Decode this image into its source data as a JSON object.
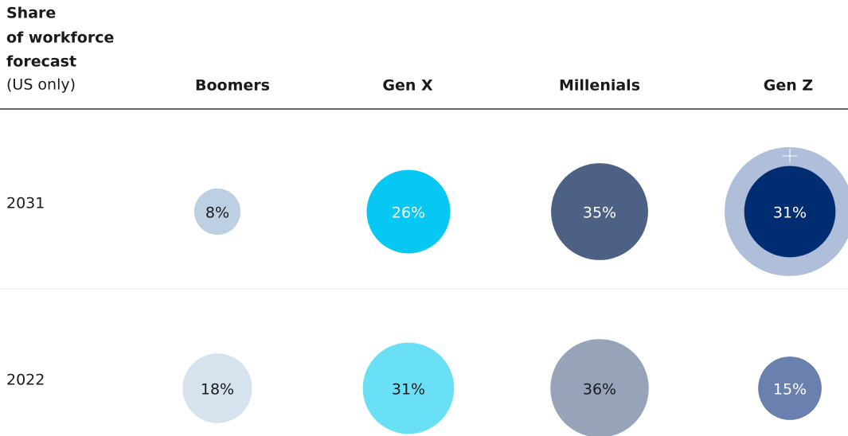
{
  "chart_data": {
    "type": "bubble-grid",
    "title": [
      "Share",
      "of workforce",
      "forecast"
    ],
    "subtitle": "(US only)",
    "categories": [
      "Boomers",
      "Gen X",
      "Millenials",
      "Gen Z"
    ],
    "series": [
      {
        "name": "2031",
        "colors": [
          "#bdd0e3",
          "#06c8f2",
          "#4d6185",
          "#002d72"
        ],
        "values": [
          8,
          26,
          35,
          31
        ],
        "value_labels": [
          "8%",
          "26%",
          "35%",
          "31%"
        ]
      },
      {
        "name": "2022",
        "colors": [
          "#d6e3ee",
          "#6ae0f7",
          "#97a3b8",
          "#6a80ae"
        ],
        "values": [
          18,
          31,
          36,
          15
        ],
        "value_labels": [
          "18%",
          "31%",
          "36%",
          "15%"
        ]
      }
    ]
  }
}
